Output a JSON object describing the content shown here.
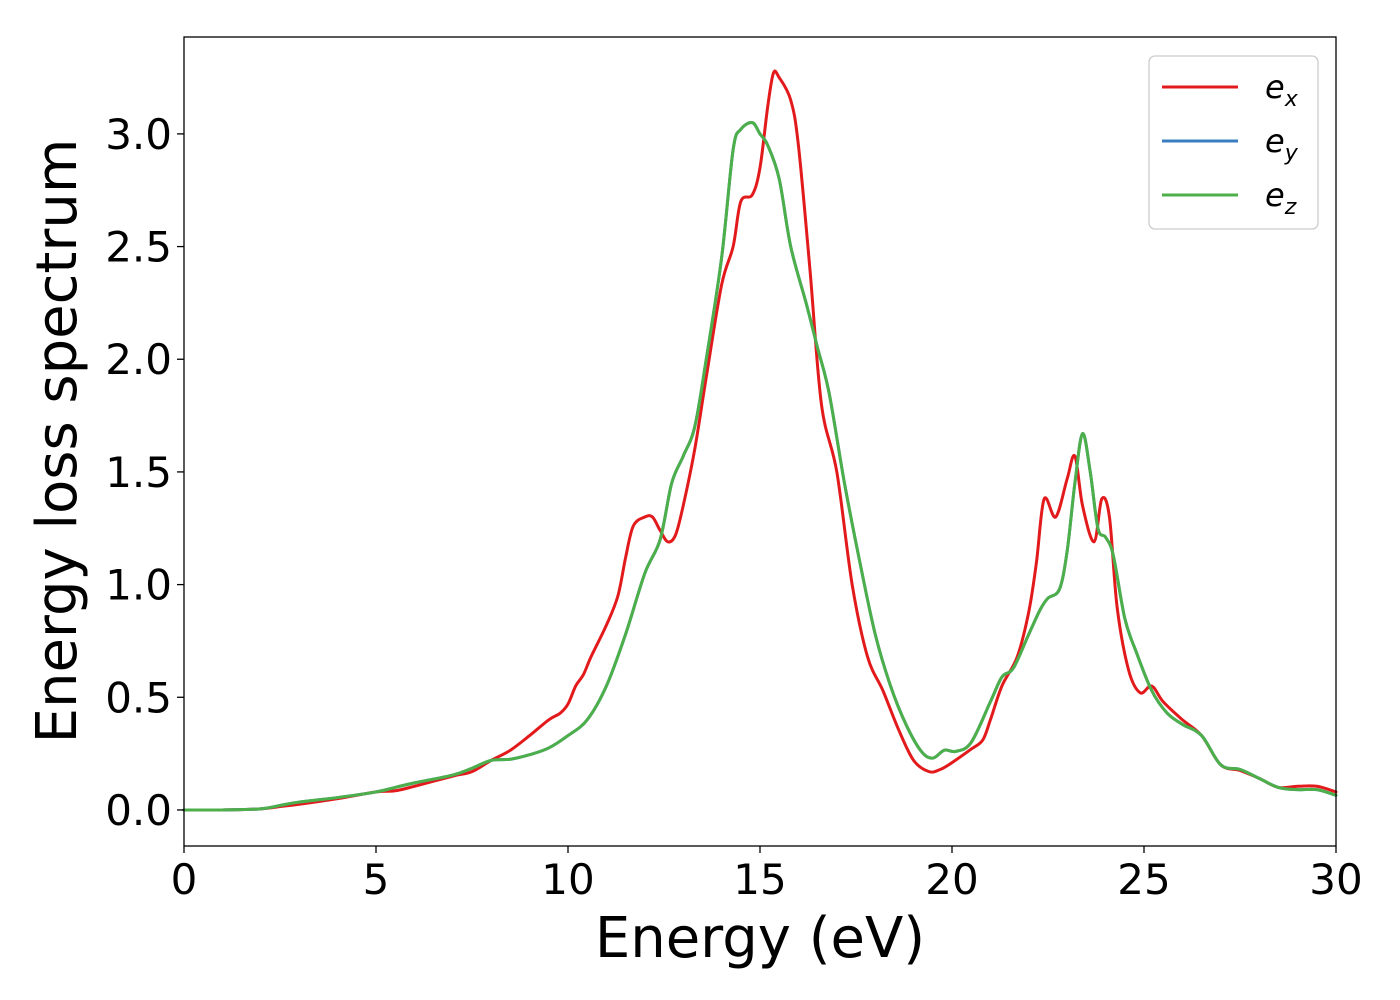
{
  "chart_data": {
    "type": "line",
    "xlabel": "Energy (eV)",
    "ylabel": "Energy loss spectrum",
    "xlim": [
      0,
      30
    ],
    "ylim": [
      -0.16,
      3.43
    ],
    "xticks": [
      0,
      5,
      10,
      15,
      20,
      25,
      30
    ],
    "xtick_labels": [
      "0",
      "5",
      "10",
      "15",
      "20",
      "25",
      "30"
    ],
    "yticks": [
      0.0,
      0.5,
      1.0,
      1.5,
      2.0,
      2.5,
      3.0
    ],
    "ytick_labels": [
      "0.0",
      "0.5",
      "1.0",
      "1.5",
      "2.0",
      "2.5",
      "3.0"
    ],
    "grid": false,
    "legend_position": "top-right",
    "series": [
      {
        "name": "e_x",
        "legend_base": "e",
        "legend_sub": "x",
        "color": "#e31a1c",
        "points": [
          [
            0,
            0
          ],
          [
            1,
            0
          ],
          [
            2,
            0.005
          ],
          [
            2.5,
            0.015
          ],
          [
            3,
            0.025
          ],
          [
            4,
            0.05
          ],
          [
            5,
            0.08
          ],
          [
            5.5,
            0.085
          ],
          [
            6,
            0.105
          ],
          [
            7,
            0.15
          ],
          [
            7.5,
            0.17
          ],
          [
            8,
            0.22
          ],
          [
            8.5,
            0.265
          ],
          [
            9,
            0.33
          ],
          [
            9.5,
            0.4
          ],
          [
            9.8,
            0.43
          ],
          [
            10,
            0.47
          ],
          [
            10.2,
            0.55
          ],
          [
            10.4,
            0.6
          ],
          [
            10.6,
            0.68
          ],
          [
            11,
            0.82
          ],
          [
            11.3,
            0.95
          ],
          [
            11.5,
            1.12
          ],
          [
            11.7,
            1.26
          ],
          [
            12,
            1.3
          ],
          [
            12.2,
            1.3
          ],
          [
            12.4,
            1.24
          ],
          [
            12.6,
            1.19
          ],
          [
            12.8,
            1.22
          ],
          [
            13,
            1.35
          ],
          [
            13.3,
            1.6
          ],
          [
            13.6,
            1.92
          ],
          [
            14,
            2.33
          ],
          [
            14.3,
            2.5
          ],
          [
            14.5,
            2.7
          ],
          [
            14.8,
            2.73
          ],
          [
            15,
            2.85
          ],
          [
            15.2,
            3.12
          ],
          [
            15.35,
            3.27
          ],
          [
            15.5,
            3.25
          ],
          [
            15.8,
            3.15
          ],
          [
            16,
            2.95
          ],
          [
            16.3,
            2.4
          ],
          [
            16.6,
            1.8
          ],
          [
            17,
            1.5
          ],
          [
            17.4,
            1.0
          ],
          [
            17.8,
            0.68
          ],
          [
            18.2,
            0.53
          ],
          [
            18.6,
            0.36
          ],
          [
            19,
            0.22
          ],
          [
            19.4,
            0.17
          ],
          [
            19.7,
            0.18
          ],
          [
            20,
            0.21
          ],
          [
            20.5,
            0.27
          ],
          [
            20.8,
            0.31
          ],
          [
            21,
            0.4
          ],
          [
            21.3,
            0.55
          ],
          [
            21.7,
            0.68
          ],
          [
            22,
            0.88
          ],
          [
            22.2,
            1.1
          ],
          [
            22.4,
            1.38
          ],
          [
            22.7,
            1.3
          ],
          [
            23,
            1.47
          ],
          [
            23.2,
            1.57
          ],
          [
            23.4,
            1.35
          ],
          [
            23.7,
            1.19
          ],
          [
            23.9,
            1.38
          ],
          [
            24.1,
            1.3
          ],
          [
            24.3,
            0.9
          ],
          [
            24.6,
            0.62
          ],
          [
            24.9,
            0.52
          ],
          [
            25.2,
            0.55
          ],
          [
            25.5,
            0.48
          ],
          [
            26,
            0.4
          ],
          [
            26.5,
            0.33
          ],
          [
            27,
            0.2
          ],
          [
            27.5,
            0.175
          ],
          [
            28,
            0.14
          ],
          [
            28.5,
            0.1
          ],
          [
            29,
            0.105
          ],
          [
            29.5,
            0.105
          ],
          [
            30,
            0.08
          ]
        ]
      },
      {
        "name": "e_y",
        "legend_base": "e",
        "legend_sub": "y",
        "color": "#3a7ebf",
        "points": [
          [
            0,
            0
          ],
          [
            1,
            0
          ],
          [
            2,
            0.005
          ],
          [
            2.5,
            0.02
          ],
          [
            3,
            0.035
          ],
          [
            4,
            0.055
          ],
          [
            5,
            0.08
          ],
          [
            5.5,
            0.1
          ],
          [
            6,
            0.12
          ],
          [
            7,
            0.155
          ],
          [
            7.5,
            0.185
          ],
          [
            8,
            0.22
          ],
          [
            8.5,
            0.225
          ],
          [
            9,
            0.245
          ],
          [
            9.5,
            0.275
          ],
          [
            10,
            0.33
          ],
          [
            10.5,
            0.4
          ],
          [
            11,
            0.55
          ],
          [
            11.5,
            0.78
          ],
          [
            12,
            1.05
          ],
          [
            12.4,
            1.2
          ],
          [
            12.7,
            1.45
          ],
          [
            13,
            1.57
          ],
          [
            13.3,
            1.7
          ],
          [
            13.6,
            2.0
          ],
          [
            14,
            2.45
          ],
          [
            14.3,
            2.93
          ],
          [
            14.5,
            3.02
          ],
          [
            14.8,
            3.05
          ],
          [
            15,
            3.0
          ],
          [
            15.2,
            2.95
          ],
          [
            15.5,
            2.8
          ],
          [
            15.8,
            2.5
          ],
          [
            16.2,
            2.25
          ],
          [
            16.5,
            2.05
          ],
          [
            16.8,
            1.85
          ],
          [
            17.2,
            1.45
          ],
          [
            17.6,
            1.1
          ],
          [
            18,
            0.78
          ],
          [
            18.4,
            0.55
          ],
          [
            18.8,
            0.38
          ],
          [
            19.2,
            0.26
          ],
          [
            19.5,
            0.23
          ],
          [
            19.8,
            0.265
          ],
          [
            20.1,
            0.26
          ],
          [
            20.5,
            0.3
          ],
          [
            21,
            0.48
          ],
          [
            21.3,
            0.59
          ],
          [
            21.6,
            0.63
          ],
          [
            22,
            0.78
          ],
          [
            22.3,
            0.89
          ],
          [
            22.5,
            0.94
          ],
          [
            22.8,
            0.98
          ],
          [
            23,
            1.15
          ],
          [
            23.2,
            1.45
          ],
          [
            23.4,
            1.67
          ],
          [
            23.6,
            1.5
          ],
          [
            23.8,
            1.25
          ],
          [
            24,
            1.21
          ],
          [
            24.2,
            1.13
          ],
          [
            24.5,
            0.85
          ],
          [
            24.8,
            0.7
          ],
          [
            25.2,
            0.53
          ],
          [
            25.6,
            0.43
          ],
          [
            26,
            0.38
          ],
          [
            26.5,
            0.33
          ],
          [
            27,
            0.2
          ],
          [
            27.5,
            0.18
          ],
          [
            28,
            0.14
          ],
          [
            28.5,
            0.1
          ],
          [
            29,
            0.09
          ],
          [
            29.5,
            0.09
          ],
          [
            30,
            0.065
          ]
        ]
      },
      {
        "name": "e_z",
        "legend_base": "e",
        "legend_sub": "z",
        "color": "#4daf4a",
        "points": [
          [
            0,
            0
          ],
          [
            1,
            0
          ],
          [
            2,
            0.005
          ],
          [
            2.5,
            0.02
          ],
          [
            3,
            0.035
          ],
          [
            4,
            0.055
          ],
          [
            5,
            0.08
          ],
          [
            5.5,
            0.1
          ],
          [
            6,
            0.12
          ],
          [
            7,
            0.155
          ],
          [
            7.5,
            0.185
          ],
          [
            8,
            0.22
          ],
          [
            8.5,
            0.225
          ],
          [
            9,
            0.245
          ],
          [
            9.5,
            0.275
          ],
          [
            10,
            0.33
          ],
          [
            10.5,
            0.4
          ],
          [
            11,
            0.55
          ],
          [
            11.5,
            0.78
          ],
          [
            12,
            1.05
          ],
          [
            12.4,
            1.2
          ],
          [
            12.7,
            1.45
          ],
          [
            13,
            1.57
          ],
          [
            13.3,
            1.7
          ],
          [
            13.6,
            2.0
          ],
          [
            14,
            2.45
          ],
          [
            14.3,
            2.93
          ],
          [
            14.5,
            3.02
          ],
          [
            14.8,
            3.05
          ],
          [
            15,
            3.0
          ],
          [
            15.2,
            2.95
          ],
          [
            15.5,
            2.8
          ],
          [
            15.8,
            2.5
          ],
          [
            16.2,
            2.25
          ],
          [
            16.5,
            2.05
          ],
          [
            16.8,
            1.85
          ],
          [
            17.2,
            1.45
          ],
          [
            17.6,
            1.1
          ],
          [
            18,
            0.78
          ],
          [
            18.4,
            0.55
          ],
          [
            18.8,
            0.38
          ],
          [
            19.2,
            0.26
          ],
          [
            19.5,
            0.23
          ],
          [
            19.8,
            0.265
          ],
          [
            20.1,
            0.26
          ],
          [
            20.5,
            0.3
          ],
          [
            21,
            0.48
          ],
          [
            21.3,
            0.59
          ],
          [
            21.6,
            0.63
          ],
          [
            22,
            0.78
          ],
          [
            22.3,
            0.89
          ],
          [
            22.5,
            0.94
          ],
          [
            22.8,
            0.98
          ],
          [
            23,
            1.15
          ],
          [
            23.2,
            1.45
          ],
          [
            23.4,
            1.67
          ],
          [
            23.6,
            1.5
          ],
          [
            23.8,
            1.25
          ],
          [
            24,
            1.21
          ],
          [
            24.2,
            1.13
          ],
          [
            24.5,
            0.85
          ],
          [
            24.8,
            0.7
          ],
          [
            25.2,
            0.53
          ],
          [
            25.6,
            0.43
          ],
          [
            26,
            0.38
          ],
          [
            26.5,
            0.33
          ],
          [
            27,
            0.2
          ],
          [
            27.5,
            0.18
          ],
          [
            28,
            0.14
          ],
          [
            28.5,
            0.1
          ],
          [
            29,
            0.09
          ],
          [
            29.5,
            0.09
          ],
          [
            30,
            0.065
          ]
        ]
      }
    ]
  }
}
